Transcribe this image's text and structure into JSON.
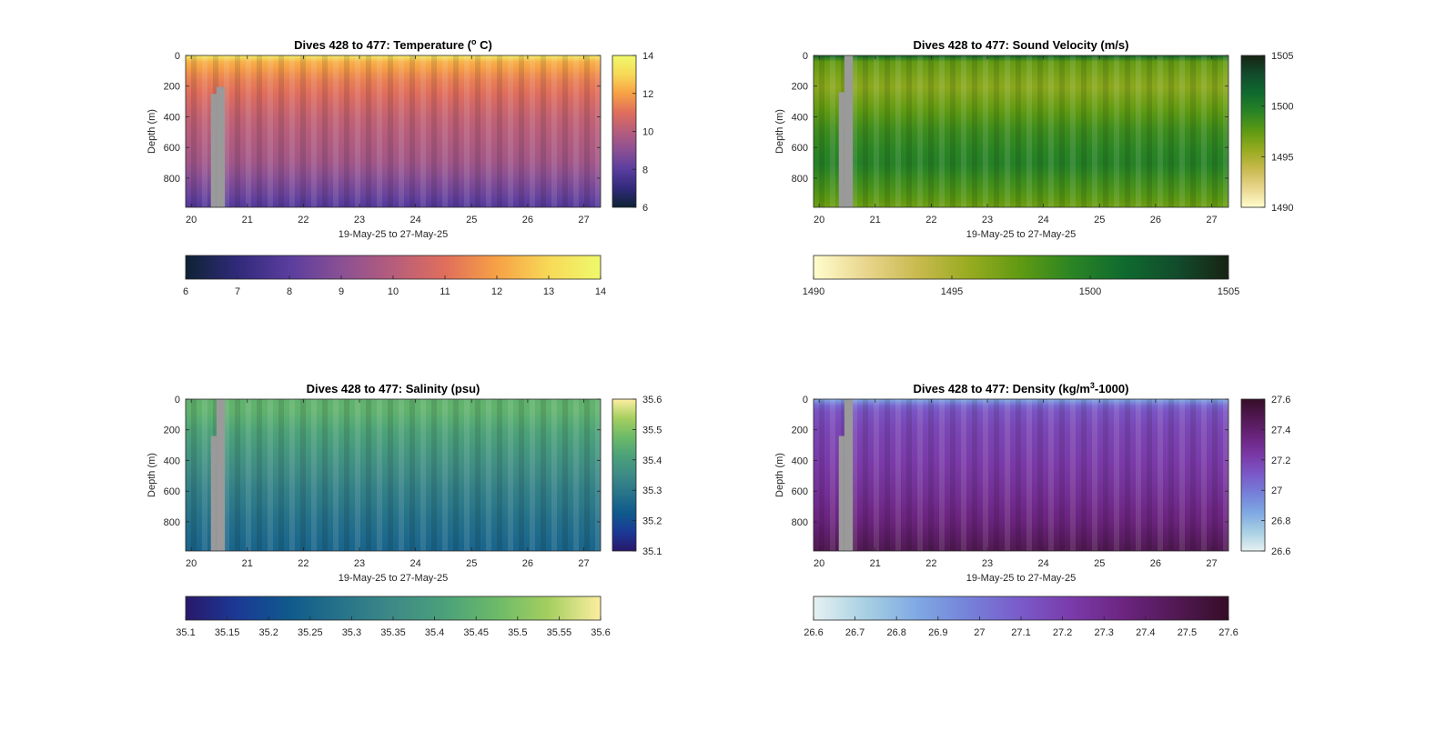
{
  "figure": {
    "x_range_label": "19-May-25 to 27-May-25",
    "ylabel": "Depth (m)"
  },
  "chart_data": [
    {
      "type": "heatmap",
      "title": "Dives 428 to 477: Temperature (°C)",
      "title_html": "Dives 428 to 477: Temperature (<tspan baseline-shift=\"super\" font-size=\"9\">o</tspan> C)",
      "xlabel": "19-May-25 to 27-May-25",
      "ylabel": "Depth (m)",
      "x_ticks": [
        "20",
        "21",
        "22",
        "23",
        "24",
        "25",
        "26",
        "27"
      ],
      "x_tick_values": [
        20,
        21,
        22,
        23,
        24,
        25,
        26,
        27
      ],
      "xlim": [
        19.9,
        27.3
      ],
      "y_ticks": [
        "0",
        "200",
        "400",
        "600",
        "800"
      ],
      "y_tick_values": [
        0,
        200,
        400,
        600,
        800
      ],
      "ylim": [
        0,
        990
      ],
      "y_reversed": true,
      "clim": [
        6,
        14
      ],
      "colormap": "thermal",
      "colormap_stops": [
        "#0d2233",
        "#312a7a",
        "#5a3d9e",
        "#8a5094",
        "#b65d7c",
        "#e06e5c",
        "#f7a145",
        "#f7d957",
        "#eff96c"
      ],
      "profile_depth": [
        0,
        40,
        150,
        400,
        700,
        900,
        990
      ],
      "profile_values": [
        13.6,
        12.3,
        11.4,
        10.3,
        9.5,
        8.4,
        7.8
      ],
      "missing_segments": [
        {
          "x_from": 20.35,
          "x_to": 20.45,
          "depth_from": 250,
          "depth_to": 990
        },
        {
          "x_from": 20.45,
          "x_to": 20.6,
          "depth_from": 205,
          "depth_to": 990
        }
      ],
      "colorbar_side_ticks": [
        "6",
        "8",
        "10",
        "12",
        "14"
      ],
      "colorbar_side_values": [
        6,
        8,
        10,
        12,
        14
      ],
      "colorbar_bottom_ticks": [
        "6",
        "7",
        "8",
        "9",
        "10",
        "11",
        "12",
        "13",
        "14"
      ],
      "colorbar_bottom_values": [
        6,
        7,
        8,
        9,
        10,
        11,
        12,
        13,
        14
      ]
    },
    {
      "type": "heatmap",
      "title": "Dives 428 to 477: Sound Velocity (m/s)",
      "title_html": "Dives 428 to 477: Sound Velocity (m/s)",
      "xlabel": "19-May-25 to 27-May-25",
      "ylabel": "Depth (m)",
      "x_ticks": [
        "20",
        "21",
        "22",
        "23",
        "24",
        "25",
        "26",
        "27"
      ],
      "x_tick_values": [
        20,
        21,
        22,
        23,
        24,
        25,
        26,
        27
      ],
      "xlim": [
        19.9,
        27.3
      ],
      "y_ticks": [
        "0",
        "200",
        "400",
        "600",
        "800"
      ],
      "y_tick_values": [
        0,
        200,
        400,
        600,
        800
      ],
      "ylim": [
        0,
        990
      ],
      "y_reversed": true,
      "clim": [
        1490,
        1505
      ],
      "colormap": "speed",
      "colormap_stops": [
        "#fffdcd",
        "#e9d68e",
        "#c9ba4f",
        "#98ab20",
        "#5f9a12",
        "#2a8424",
        "#0f6a2f",
        "#124c2c",
        "#172313"
      ],
      "profile_depth": [
        0,
        25,
        200,
        500,
        700,
        900,
        990
      ],
      "profile_values": [
        1501.5,
        1497.5,
        1496.0,
        1498.8,
        1499.7,
        1498.0,
        1497.0
      ],
      "missing_segments": [
        {
          "x_from": 20.35,
          "x_to": 20.45,
          "depth_from": 240,
          "depth_to": 990
        },
        {
          "x_from": 20.45,
          "x_to": 20.6,
          "depth_from": 0,
          "depth_to": 990
        }
      ],
      "colorbar_side_ticks": [
        "1490",
        "1495",
        "1500",
        "1505"
      ],
      "colorbar_side_values": [
        1490,
        1495,
        1500,
        1505
      ],
      "colorbar_bottom_ticks": [
        "1490",
        "1495",
        "1500",
        "1505"
      ],
      "colorbar_bottom_values": [
        1490,
        1495,
        1500,
        1505
      ]
    },
    {
      "type": "heatmap",
      "title": "Dives 428 to 477: Salinity (psu)",
      "title_html": "Dives 428 to 477: Salinity (psu)",
      "xlabel": "19-May-25 to 27-May-25",
      "ylabel": "Depth (m)",
      "x_ticks": [
        "20",
        "21",
        "22",
        "23",
        "24",
        "25",
        "26",
        "27"
      ],
      "x_tick_values": [
        20,
        21,
        22,
        23,
        24,
        25,
        26,
        27
      ],
      "xlim": [
        19.9,
        27.3
      ],
      "y_ticks": [
        "0",
        "200",
        "400",
        "600",
        "800"
      ],
      "y_tick_values": [
        0,
        200,
        400,
        600,
        800
      ],
      "ylim": [
        0,
        990
      ],
      "y_reversed": true,
      "clim": [
        35.1,
        35.6
      ],
      "colormap": "haline",
      "colormap_stops": [
        "#29186b",
        "#1b3996",
        "#0f5a8c",
        "#27738a",
        "#3d8a86",
        "#4ba17a",
        "#6cba68",
        "#a5cf60",
        "#fdeea0"
      ],
      "profile_depth": [
        0,
        60,
        200,
        400,
        600,
        800,
        990
      ],
      "profile_values": [
        35.45,
        35.46,
        35.42,
        35.37,
        35.32,
        35.28,
        35.25
      ],
      "missing_segments": [
        {
          "x_from": 20.35,
          "x_to": 20.45,
          "depth_from": 240,
          "depth_to": 990
        },
        {
          "x_from": 20.45,
          "x_to": 20.6,
          "depth_from": 0,
          "depth_to": 990
        }
      ],
      "colorbar_side_ticks": [
        "35.1",
        "35.2",
        "35.3",
        "35.4",
        "35.5",
        "35.6"
      ],
      "colorbar_side_values": [
        35.1,
        35.2,
        35.3,
        35.4,
        35.5,
        35.6
      ],
      "colorbar_bottom_ticks": [
        "35.1",
        "35.15",
        "35.2",
        "35.25",
        "35.3",
        "35.35",
        "35.4",
        "35.45",
        "35.5",
        "35.55",
        "35.6"
      ],
      "colorbar_bottom_values": [
        35.1,
        35.15,
        35.2,
        35.25,
        35.3,
        35.35,
        35.4,
        35.45,
        35.5,
        35.55,
        35.6
      ]
    },
    {
      "type": "heatmap",
      "title": "Dives 428 to 477: Density (kg/m3-1000)",
      "title_html": "Dives 428 to 477: Density (kg/m<tspan baseline-shift=\"super\" font-size=\"9\">3</tspan>-1000)",
      "xlabel": "19-May-25 to 27-May-25",
      "ylabel": "Depth (m)",
      "x_ticks": [
        "20",
        "21",
        "22",
        "23",
        "24",
        "25",
        "26",
        "27"
      ],
      "x_tick_values": [
        20,
        21,
        22,
        23,
        24,
        25,
        26,
        27
      ],
      "xlim": [
        19.9,
        27.3
      ],
      "y_ticks": [
        "0",
        "200",
        "400",
        "600",
        "800"
      ],
      "y_tick_values": [
        0,
        200,
        400,
        600,
        800
      ],
      "ylim": [
        0,
        990
      ],
      "y_reversed": true,
      "clim": [
        26.6,
        27.6
      ],
      "colormap": "dense",
      "colormap_stops": [
        "#e6f1f1",
        "#a8d0e3",
        "#7fa9e3",
        "#7581d9",
        "#7a5ac9",
        "#7a3aa8",
        "#6b247f",
        "#511953",
        "#360d28"
      ],
      "profile_depth": [
        0,
        25,
        60,
        200,
        400,
        600,
        800,
        990
      ],
      "profile_values": [
        26.85,
        27.0,
        27.12,
        27.18,
        27.22,
        27.28,
        27.36,
        27.48
      ],
      "missing_segments": [
        {
          "x_from": 20.35,
          "x_to": 20.45,
          "depth_from": 240,
          "depth_to": 990
        },
        {
          "x_from": 20.45,
          "x_to": 20.6,
          "depth_from": 0,
          "depth_to": 990
        }
      ],
      "colorbar_side_ticks": [
        "26.6",
        "26.8",
        "27",
        "27.2",
        "27.4",
        "27.6"
      ],
      "colorbar_side_values": [
        26.6,
        26.8,
        27.0,
        27.2,
        27.4,
        27.6
      ],
      "colorbar_bottom_ticks": [
        "26.6",
        "26.7",
        "26.8",
        "26.9",
        "27",
        "27.1",
        "27.2",
        "27.3",
        "27.4",
        "27.5",
        "27.6"
      ],
      "colorbar_bottom_values": [
        26.6,
        26.7,
        26.8,
        26.9,
        27.0,
        27.1,
        27.2,
        27.3,
        27.4,
        27.5,
        27.6
      ]
    }
  ]
}
